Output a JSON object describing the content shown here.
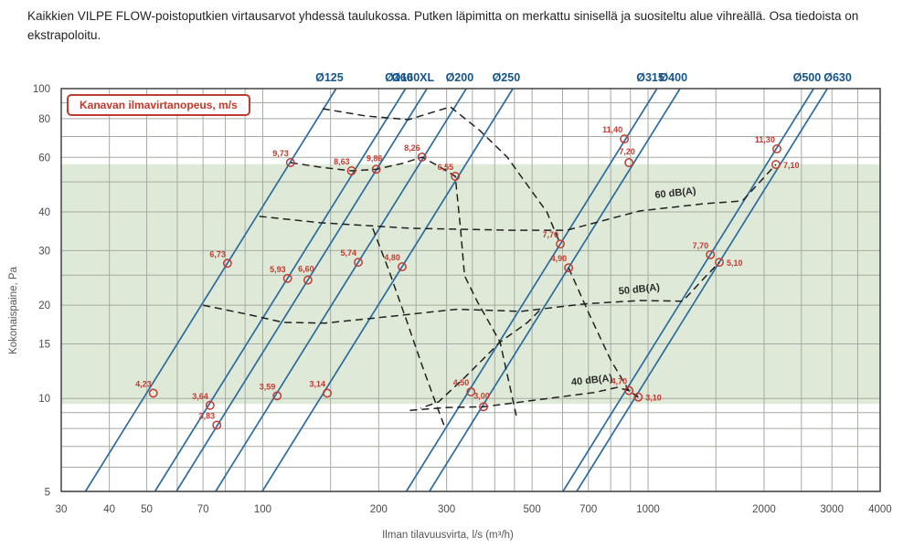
{
  "header": {
    "title": "Kaikkien VILPE FLOW-poistoputkien virtausarvot yhdessä taulukossa. Putken läpimitta on merkattu sinisellä ja suositeltu alue vihreällä. Osa tiedoista on ekstrapoloitu."
  },
  "legend": {
    "label": "Kanavan ilmavirtanopeus, m/s"
  },
  "chart_data": {
    "type": "line",
    "x_axis": {
      "label": "Ilman tilavuusvirta, l/s (m³/h)",
      "scale": "log",
      "min": 30,
      "max": 4000,
      "ticks": [
        30,
        40,
        50,
        70,
        100,
        200,
        300,
        500,
        700,
        1000,
        2000,
        3000,
        4000
      ],
      "grid": [
        30,
        40,
        50,
        60,
        70,
        80,
        90,
        100,
        150,
        200,
        250,
        300,
        350,
        400,
        450,
        500,
        600,
        700,
        800,
        900,
        1000,
        1500,
        2000,
        2500,
        3000,
        3500,
        4000
      ]
    },
    "y_axis": {
      "label": "Kokonaispaine, Pa",
      "scale": "log",
      "min": 5,
      "max": 100,
      "ticks": [
        100,
        80,
        60,
        40,
        30,
        20,
        15,
        10,
        5
      ],
      "grid": [
        5,
        6,
        7,
        8,
        9,
        10,
        15,
        20,
        25,
        30,
        40,
        50,
        60,
        70,
        80,
        90,
        100
      ]
    },
    "recommended_band": {
      "p_min": 9.6,
      "p_max": 57
    },
    "pipe_lines": [
      {
        "label": "Ø125",
        "points": [
          {
            "v": "9,73",
            "q": 118,
            "p": 57.7
          },
          {
            "v": "6,73",
            "q": 81,
            "p": 27.3
          },
          {
            "v": "4,23",
            "q": 52,
            "p": 10.4
          }
        ]
      },
      {
        "label": "Ø160",
        "points": [
          {
            "v": "8,63",
            "q": 170,
            "p": 54.3
          },
          {
            "v": "5,93",
            "q": 116,
            "p": 24.4
          },
          {
            "v": "3,64",
            "q": 73,
            "p": 9.5
          }
        ]
      },
      {
        "label": "Ø160XL",
        "points": [
          {
            "v": "9,86",
            "q": 197,
            "p": 54.9,
            "pos": "a"
          },
          {
            "v": "6,60",
            "q": 131,
            "p": 24.1,
            "pos": "a"
          },
          {
            "v": "3,83",
            "q": 76,
            "p": 8.2
          }
        ]
      },
      {
        "label": "Ø200",
        "points": [
          {
            "v": "8,26",
            "q": 259,
            "p": 60.1
          },
          {
            "v": "5,74",
            "q": 177,
            "p": 27.5
          },
          {
            "v": "3,59",
            "q": 109,
            "p": 10.2
          }
        ]
      },
      {
        "label": "Ø250",
        "points": [
          {
            "v": "6,55",
            "q": 316,
            "p": 52.1
          },
          {
            "v": "4,80",
            "q": 230,
            "p": 26.6
          },
          {
            "v": "3,14",
            "q": 147,
            "p": 10.4
          }
        ]
      },
      {
        "label": "Ø315",
        "points": [
          {
            "v": "11,40",
            "q": 868,
            "p": 68.8
          },
          {
            "v": "7,70",
            "q": 592,
            "p": 31.5
          },
          {
            "v": "4,50",
            "q": 347,
            "p": 10.5
          }
        ]
      },
      {
        "label": "Ø400",
        "points": [
          {
            "v": "7,20",
            "q": 892,
            "p": 57.7,
            "pos": "a"
          },
          {
            "v": "4,90",
            "q": 622,
            "p": 26.4
          },
          {
            "v": "3,00",
            "q": 374,
            "p": 9.4,
            "pos": "a"
          }
        ]
      },
      {
        "label": "Ø500",
        "points": [
          {
            "v": "11,30",
            "q": 2159,
            "p": 63.9
          },
          {
            "v": "7,70",
            "q": 1451,
            "p": 29.1
          },
          {
            "v": "4,70",
            "q": 892,
            "p": 10.6
          }
        ]
      },
      {
        "label": "Ø630",
        "points": [
          {
            "v": "7,10",
            "q": 2147,
            "p": 56.9,
            "pos": "r"
          },
          {
            "v": "5,10",
            "q": 1531,
            "p": 27.5,
            "pos": "r"
          },
          {
            "v": "3,10",
            "q": 943,
            "p": 10.1,
            "pos": "r"
          }
        ]
      }
    ],
    "noise_contours": [
      {
        "label": "60 dB(A)",
        "label_q": 1180,
        "label_p": 45,
        "path": [
          [
            98,
            38.7
          ],
          [
            141,
            36.9
          ],
          [
            243,
            35.4
          ],
          [
            443,
            34.9
          ],
          [
            615,
            34.9
          ],
          [
            953,
            40.3
          ],
          [
            1396,
            42.5
          ],
          [
            1757,
            43.4
          ],
          [
            2147,
            56.9
          ]
        ]
      },
      {
        "label": "50 dB(A)",
        "label_q": 950,
        "label_p": 22,
        "path": [
          [
            70,
            20.0
          ],
          [
            91,
            18.7
          ],
          [
            113,
            17.6
          ],
          [
            145,
            17.5
          ],
          [
            206,
            18.3
          ],
          [
            319,
            19.4
          ],
          [
            468,
            19.1
          ],
          [
            687,
            20.2
          ],
          [
            953,
            20.7
          ],
          [
            1230,
            20.6
          ],
          [
            1396,
            24.4
          ],
          [
            1531,
            27.5
          ]
        ]
      },
      {
        "label": "40 dB(A)",
        "label_q": 716,
        "label_p": 11.2,
        "path": [
          [
            241,
            9.15
          ],
          [
            302,
            9.35
          ],
          [
            374,
            9.4
          ],
          [
            552,
            10.0
          ],
          [
            724,
            10.45
          ],
          [
            831,
            10.85
          ],
          [
            892,
            10.6
          ],
          [
            943,
            10.1
          ]
        ]
      }
    ],
    "fan_curves": [
      {
        "path": [
          [
            143,
            86.1
          ],
          [
            185,
            81.6
          ],
          [
            239,
            79.4
          ],
          [
            271,
            83.3
          ],
          [
            307,
            87.3
          ],
          [
            366,
            73.2
          ],
          [
            431,
            60.1
          ],
          [
            481,
            49.7
          ],
          [
            546,
            40.0
          ],
          [
            592,
            31.5
          ]
        ]
      },
      {
        "path": [
          [
            118,
            57.7
          ],
          [
            142,
            55.7
          ],
          [
            170,
            54.3
          ],
          [
            197,
            54.9
          ],
          [
            230,
            57.3
          ],
          [
            259,
            60.1
          ],
          [
            286,
            56.2
          ],
          [
            316,
            52.1
          ],
          [
            326,
            35.4
          ],
          [
            334,
            24.9
          ],
          [
            360,
            20.6
          ],
          [
            413,
            15.2
          ],
          [
            436,
            11.2
          ],
          [
            455,
            8.8
          ]
        ]
      },
      {
        "path": [
          [
            193,
            35.4
          ],
          [
            212,
            26.1
          ],
          [
            236,
            17.9
          ],
          [
            259,
            12.8
          ],
          [
            283,
            9.45
          ],
          [
            297,
            8.05
          ]
        ]
      },
      {
        "path": [
          [
            522,
            19.2
          ],
          [
            487,
            17.6
          ],
          [
            413,
            15.2
          ],
          [
            337,
            11.8
          ],
          [
            286,
            9.75
          ],
          [
            257,
            9.3
          ]
        ]
      },
      {
        "path": [
          [
            622,
            26.4
          ],
          [
            705,
            18.6
          ],
          [
            800,
            13.3
          ],
          [
            892,
            10.6
          ],
          [
            943,
            10.1
          ]
        ]
      }
    ],
    "colors": {
      "pipe_line": "#2c6b9d",
      "pipe_label": "#15548a",
      "point": "#c23a31",
      "band": "#dfe9d7",
      "grid": "#a5aba2",
      "frame": "#424242",
      "contour": "#202020",
      "tick": "#4a4a4a",
      "legend_red": "#c0392b"
    }
  }
}
